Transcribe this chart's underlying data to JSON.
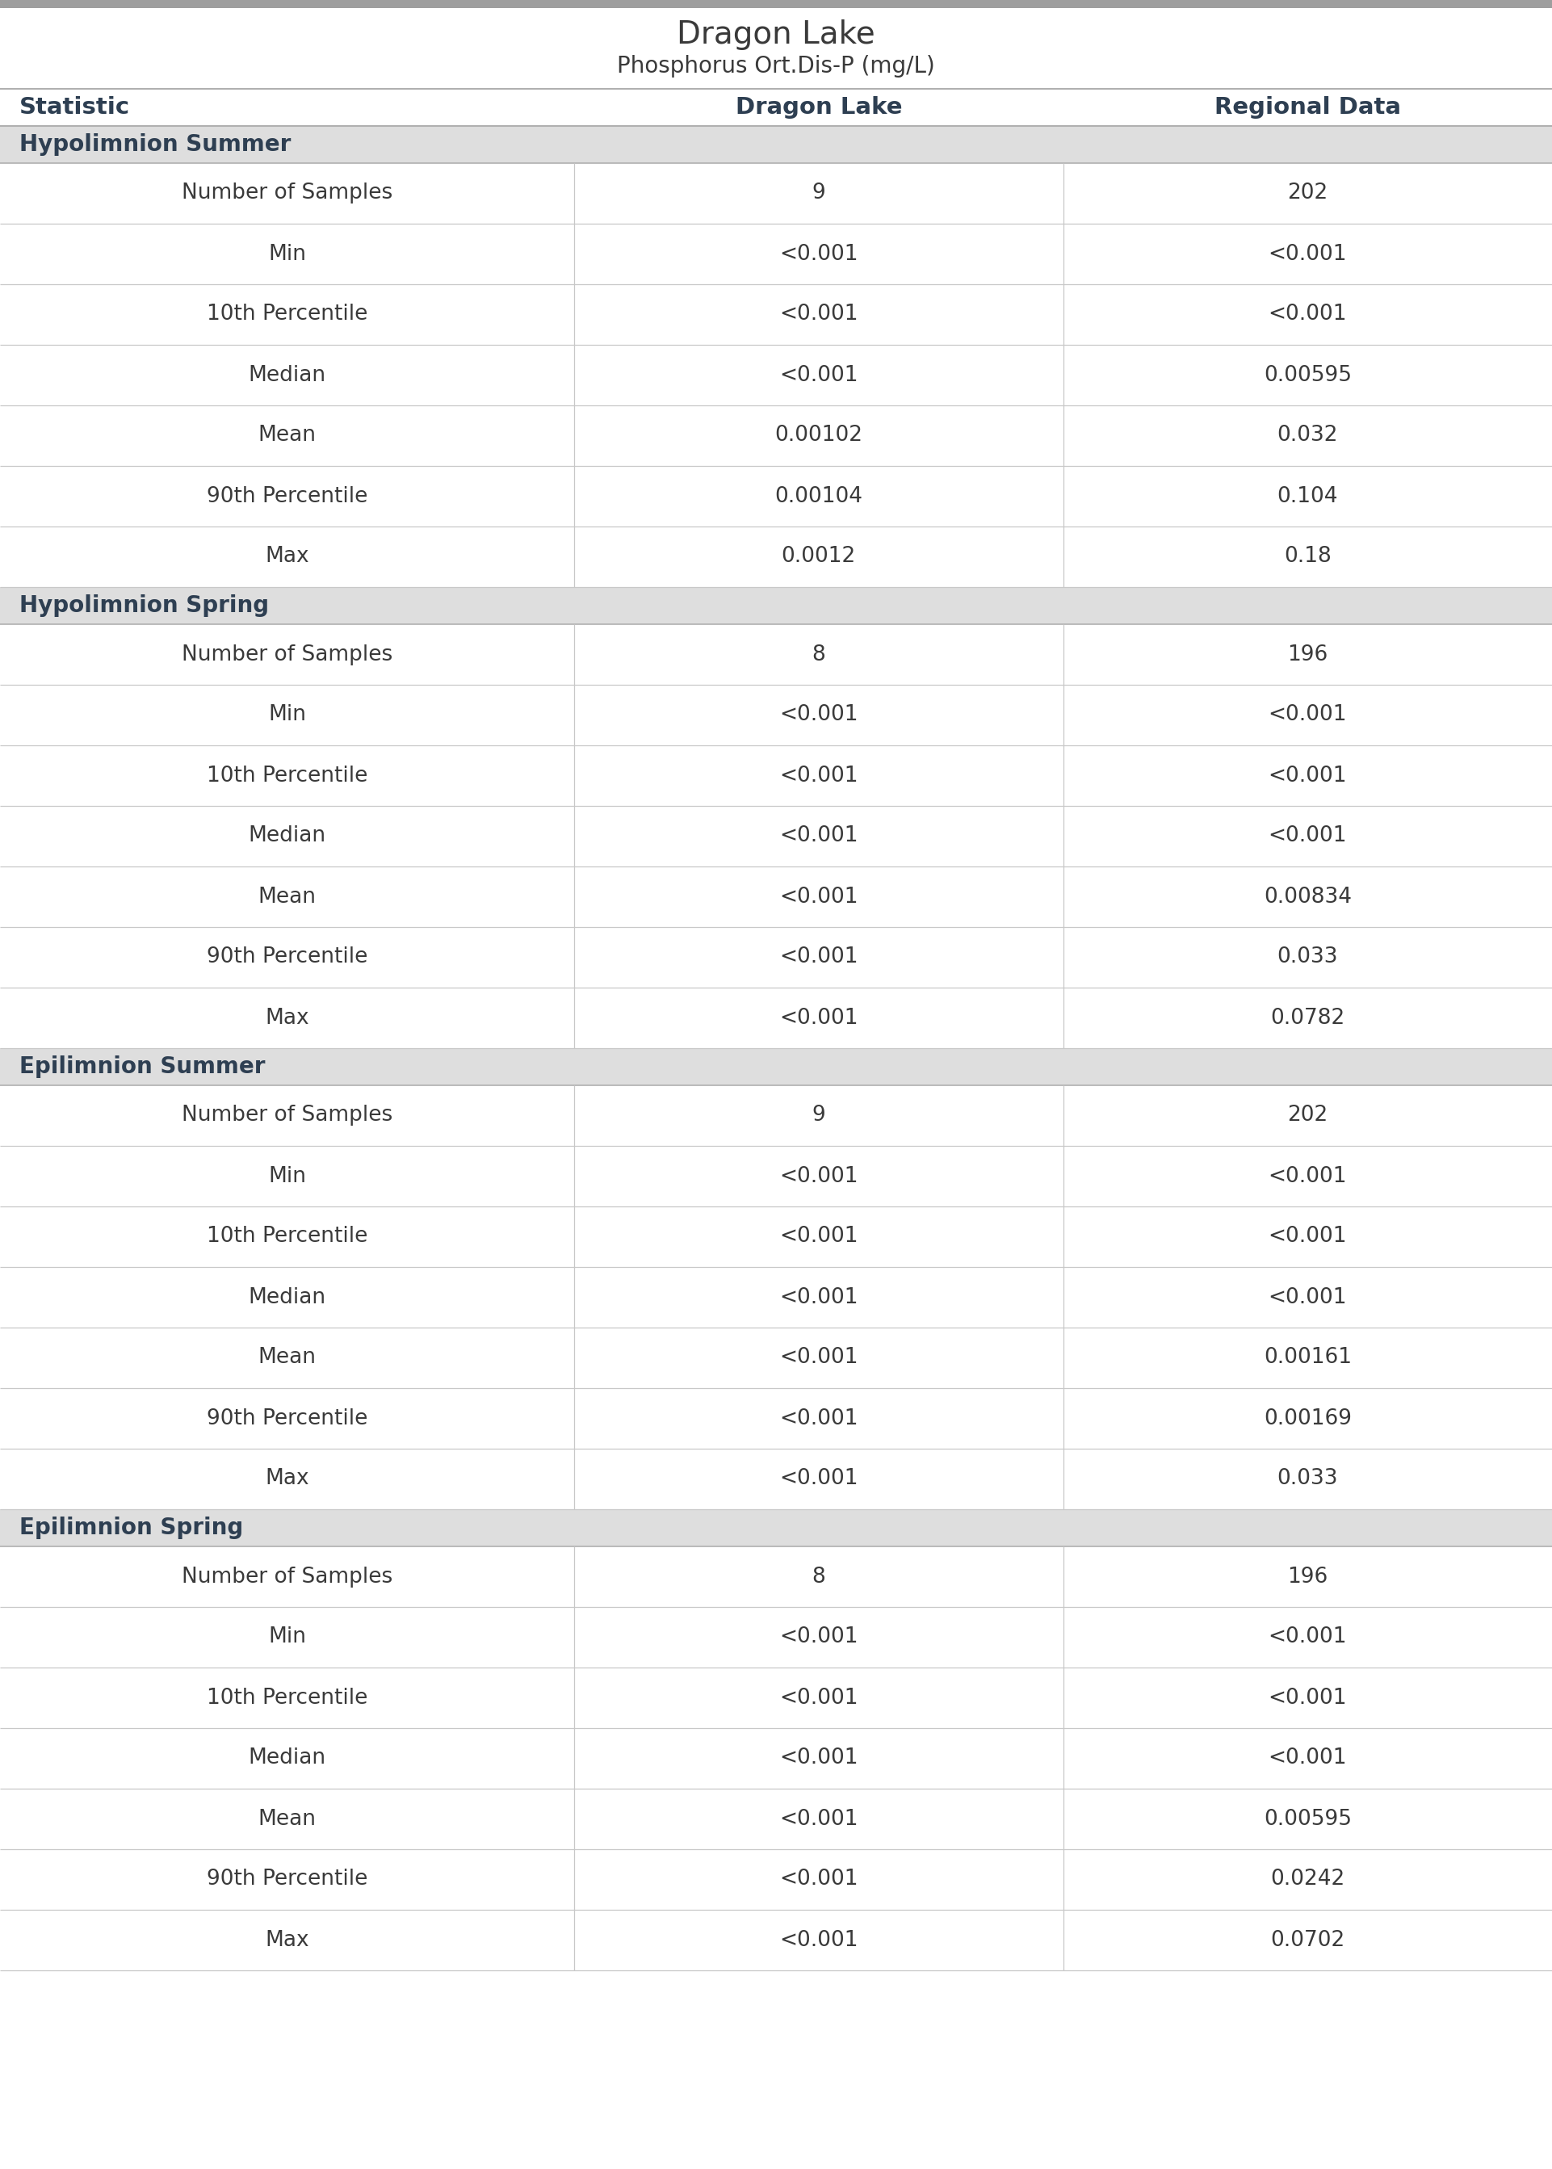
{
  "title": "Dragon Lake",
  "subtitle": "Phosphorus Ort.Dis-P (mg/L)",
  "col_headers": [
    "Statistic",
    "Dragon Lake",
    "Regional Data"
  ],
  "sections": [
    {
      "header": "Hypolimnion Summer",
      "rows": [
        [
          "Number of Samples",
          "9",
          "202"
        ],
        [
          "Min",
          "<0.001",
          "<0.001"
        ],
        [
          "10th Percentile",
          "<0.001",
          "<0.001"
        ],
        [
          "Median",
          "<0.001",
          "0.00595"
        ],
        [
          "Mean",
          "0.00102",
          "0.032"
        ],
        [
          "90th Percentile",
          "0.00104",
          "0.104"
        ],
        [
          "Max",
          "0.0012",
          "0.18"
        ]
      ]
    },
    {
      "header": "Hypolimnion Spring",
      "rows": [
        [
          "Number of Samples",
          "8",
          "196"
        ],
        [
          "Min",
          "<0.001",
          "<0.001"
        ],
        [
          "10th Percentile",
          "<0.001",
          "<0.001"
        ],
        [
          "Median",
          "<0.001",
          "<0.001"
        ],
        [
          "Mean",
          "<0.001",
          "0.00834"
        ],
        [
          "90th Percentile",
          "<0.001",
          "0.033"
        ],
        [
          "Max",
          "<0.001",
          "0.0782"
        ]
      ]
    },
    {
      "header": "Epilimnion Summer",
      "rows": [
        [
          "Number of Samples",
          "9",
          "202"
        ],
        [
          "Min",
          "<0.001",
          "<0.001"
        ],
        [
          "10th Percentile",
          "<0.001",
          "<0.001"
        ],
        [
          "Median",
          "<0.001",
          "<0.001"
        ],
        [
          "Mean",
          "<0.001",
          "0.00161"
        ],
        [
          "90th Percentile",
          "<0.001",
          "0.00169"
        ],
        [
          "Max",
          "<0.001",
          "0.033"
        ]
      ]
    },
    {
      "header": "Epilimnion Spring",
      "rows": [
        [
          "Number of Samples",
          "8",
          "196"
        ],
        [
          "Min",
          "<0.001",
          "<0.001"
        ],
        [
          "10th Percentile",
          "<0.001",
          "<0.001"
        ],
        [
          "Median",
          "<0.001",
          "<0.001"
        ],
        [
          "Mean",
          "<0.001",
          "0.00595"
        ],
        [
          "90th Percentile",
          "<0.001",
          "0.0242"
        ],
        [
          "Max",
          "<0.001",
          "0.0702"
        ]
      ]
    }
  ],
  "title_fontsize": 28,
  "subtitle_fontsize": 20,
  "col_header_fontsize": 21,
  "section_header_fontsize": 20,
  "cell_fontsize": 19,
  "title_color": "#3a3a3a",
  "subtitle_color": "#3a3a3a",
  "col_header_color": "#2e3f52",
  "section_header_color": "#2e3f52",
  "cell_text_color": "#3a3a3a",
  "section_bg_color": "#dedede",
  "row_bg_white": "#ffffff",
  "divider_color": "#c8c8c8",
  "header_line_color": "#b0b0b0",
  "top_bar_color": "#9e9e9e",
  "col_split1": 0.37,
  "col_split2": 0.685
}
